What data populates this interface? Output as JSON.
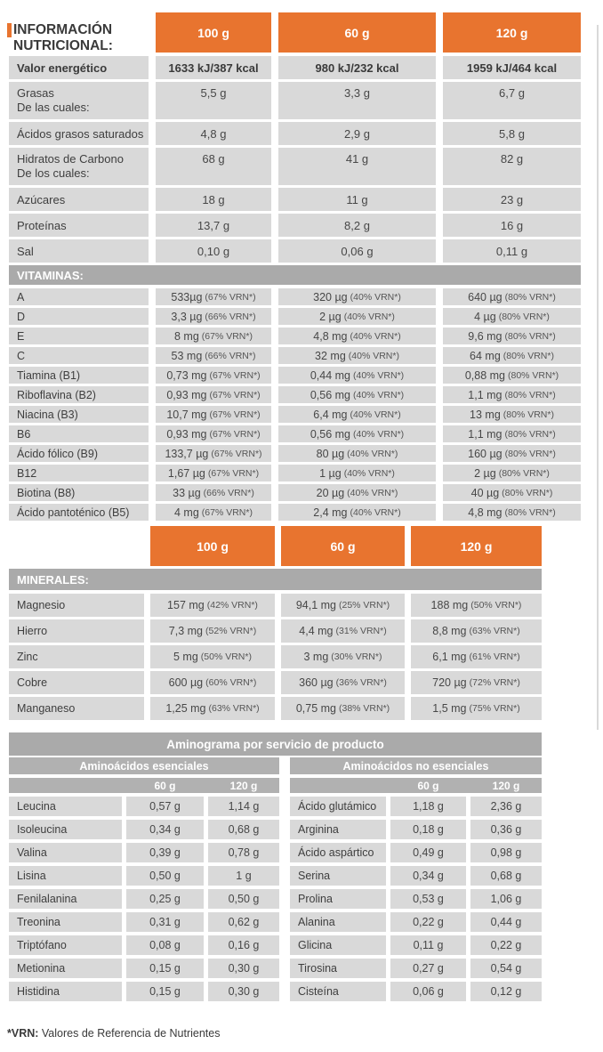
{
  "page": {
    "title_line1": "INFORMACIÓN",
    "title_line2": "NUTRICIONAL:",
    "footnote_bold": "*VRN:",
    "footnote_rest": " Valores de Referencia de Nutrientes"
  },
  "colors": {
    "orange": "#e8742f",
    "band_gray": "#aaaaaa",
    "subband_gray": "#b1b1b1",
    "row_gray": "#d9d9d9",
    "text": "#3e3e3e"
  },
  "table1": {
    "columns": [
      "100 g",
      "60 g",
      "120 g"
    ],
    "rows": [
      {
        "label": "Valor energético",
        "sub": "",
        "bold": true,
        "v1": "1633 kJ/387 kcal",
        "v2": "980 kJ/232 kcal",
        "v3": "1959 kJ/464 kcal"
      },
      {
        "label": "Grasas",
        "sub": "De las cuales:",
        "v1": "5,5 g",
        "v2": "3,3 g",
        "v3": "6,7 g"
      },
      {
        "label": "Ácidos grasos saturados",
        "sub": "",
        "v1": "4,8 g",
        "v2": "2,9 g",
        "v3": "5,8 g"
      },
      {
        "label": "Hidratos de Carbono",
        "sub": "De los cuales:",
        "v1": "68 g",
        "v2": "41 g",
        "v3": "82 g"
      },
      {
        "label": "Azúcares",
        "sub": "",
        "v1": "18 g",
        "v2": "11 g",
        "v3": "23 g"
      },
      {
        "label": "Proteínas",
        "sub": "",
        "v1": "13,7 g",
        "v2": "8,2 g",
        "v3": "16 g"
      },
      {
        "label": "Sal",
        "sub": "",
        "v1": "0,10 g",
        "v2": "0,06 g",
        "v3": "0,11 g"
      }
    ]
  },
  "vitamins": {
    "section_title": "VITAMINAS:",
    "rows": [
      {
        "label": "A",
        "v1": "533µg",
        "p1": "(67% VRN*)",
        "v2": "320 µg",
        "p2": "(40% VRN*)",
        "v3": "640 µg",
        "p3": "(80% VRN*)"
      },
      {
        "label": "D",
        "v1": "3,3 µg",
        "p1": "(66% VRN*)",
        "v2": "2 µg",
        "p2": "(40% VRN*)",
        "v3": "4 µg",
        "p3": "(80% VRN*)"
      },
      {
        "label": "E",
        "v1": "8 mg",
        "p1": "(67% VRN*)",
        "v2": "4,8 mg",
        "p2": "(40% VRN*)",
        "v3": "9,6 mg",
        "p3": "(80% VRN*)"
      },
      {
        "label": "C",
        "v1": "53 mg",
        "p1": "(66% VRN*)",
        "v2": "32 mg",
        "p2": "(40% VRN*)",
        "v3": "64 mg",
        "p3": "(80% VRN*)"
      },
      {
        "label": "Tiamina (B1)",
        "v1": "0,73 mg",
        "p1": "(67% VRN*)",
        "v2": "0,44 mg",
        "p2": "(40% VRN*)",
        "v3": "0,88 mg",
        "p3": "(80% VRN*)"
      },
      {
        "label": "Riboflavina (B2)",
        "v1": "0,93 mg",
        "p1": "(67% VRN*)",
        "v2": "0,56 mg",
        "p2": "(40% VRN*)",
        "v3": "1,1 mg",
        "p3": "(80% VRN*)"
      },
      {
        "label": "Niacina (B3)",
        "v1": "10,7 mg",
        "p1": "(67% VRN*)",
        "v2": "6,4 mg",
        "p2": "(40% VRN*)",
        "v3": "13 mg",
        "p3": "(80% VRN*)"
      },
      {
        "label": "B6",
        "v1": "0,93 mg",
        "p1": "(67% VRN*)",
        "v2": "0,56 mg",
        "p2": "(40% VRN*)",
        "v3": "1,1 mg",
        "p3": "(80% VRN*)"
      },
      {
        "label": "Ácido fólico (B9)",
        "v1": "133,7 µg",
        "p1": "(67% VRN*)",
        "v2": "80 µg",
        "p2": "(40% VRN*)",
        "v3": "160 µg",
        "p3": "(80% VRN*)"
      },
      {
        "label": "B12",
        "v1": "1,67 µg",
        "p1": "(67% VRN*)",
        "v2": "1 µg",
        "p2": "(40% VRN*)",
        "v3": "2 µg",
        "p3": "(80% VRN*)"
      },
      {
        "label": "Biotina (B8)",
        "v1": "33 µg",
        "p1": "(66% VRN*)",
        "v2": "20 µg",
        "p2": "(40% VRN*)",
        "v3": "40 µg",
        "p3": "(80% VRN*)"
      },
      {
        "label": "Ácido pantoténico (B5)",
        "v1": "4 mg",
        "p1": "(67% VRN*)",
        "v2": "2,4 mg",
        "p2": "(40% VRN*)",
        "v3": "4,8 mg",
        "p3": "(80% VRN*)"
      }
    ]
  },
  "table2": {
    "columns": [
      "100 g",
      "60 g",
      "120 g"
    ]
  },
  "minerals": {
    "section_title": "MINERALES:",
    "rows": [
      {
        "label": "Magnesio",
        "v1": "157 mg",
        "p1": "(42% VRN*)",
        "v2": "94,1 mg",
        "p2": "(25% VRN*)",
        "v3": "188 mg",
        "p3": "(50% VRN*)"
      },
      {
        "label": "Hierro",
        "v1": "7,3 mg",
        "p1": "(52% VRN*)",
        "v2": "4,4 mg",
        "p2": "(31% VRN*)",
        "v3": "8,8 mg",
        "p3": "(63% VRN*)"
      },
      {
        "label": "Zinc",
        "v1": "5 mg",
        "p1": "(50% VRN*)",
        "v2": "3 mg",
        "p2": "(30% VRN*)",
        "v3": "6,1 mg",
        "p3": "(61% VRN*)"
      },
      {
        "label": "Cobre",
        "v1": "600 µg",
        "p1": "(60% VRN*)",
        "v2": "360 µg",
        "p2": "(36% VRN*)",
        "v3": "720 µg",
        "p3": "(72% VRN*)"
      },
      {
        "label": "Manganeso",
        "v1": "1,25 mg",
        "p1": "(63% VRN*)",
        "v2": "0,75 mg",
        "p2": "(38% VRN*)",
        "v3": "1,5 mg",
        "p3": "(75% VRN*)"
      }
    ]
  },
  "aminogram": {
    "title": "Aminograma por servicio de producto",
    "left": {
      "header": "Aminoácidos esenciales",
      "col1": "60 g",
      "col2": "120 g",
      "rows": [
        {
          "label": "Leucina",
          "v1": "0,57 g",
          "v2": "1,14 g"
        },
        {
          "label": "Isoleucina",
          "v1": "0,34 g",
          "v2": "0,68 g"
        },
        {
          "label": "Valina",
          "v1": "0,39 g",
          "v2": "0,78 g"
        },
        {
          "label": "Lisina",
          "v1": "0,50 g",
          "v2": "1 g"
        },
        {
          "label": "Fenilalanina",
          "v1": "0,25 g",
          "v2": "0,50 g"
        },
        {
          "label": "Treonina",
          "v1": "0,31 g",
          "v2": "0,62 g"
        },
        {
          "label": "Triptófano",
          "v1": "0,08 g",
          "v2": "0,16 g"
        },
        {
          "label": "Metionina",
          "v1": "0,15 g",
          "v2": "0,30 g"
        },
        {
          "label": "Histidina",
          "v1": "0,15 g",
          "v2": "0,30 g"
        }
      ]
    },
    "right": {
      "header": "Aminoácidos no esenciales",
      "col1": "60 g",
      "col2": "120 g",
      "rows": [
        {
          "label": "Ácido glutámico",
          "v1": "1,18 g",
          "v2": "2,36 g"
        },
        {
          "label": "Arginina",
          "v1": "0,18 g",
          "v2": "0,36 g"
        },
        {
          "label": "Ácido aspártico",
          "v1": "0,49 g",
          "v2": "0,98 g"
        },
        {
          "label": "Serina",
          "v1": "0,34 g",
          "v2": "0,68 g"
        },
        {
          "label": "Prolina",
          "v1": "0,53 g",
          "v2": "1,06 g"
        },
        {
          "label": "Alanina",
          "v1": "0,22 g",
          "v2": "0,44 g"
        },
        {
          "label": "Glicina",
          "v1": "0,11 g",
          "v2": "0,22 g"
        },
        {
          "label": "Tirosina",
          "v1": "0,27 g",
          "v2": "0,54 g"
        },
        {
          "label": "Cisteína",
          "v1": "0,06 g",
          "v2": "0,12 g"
        }
      ]
    }
  }
}
